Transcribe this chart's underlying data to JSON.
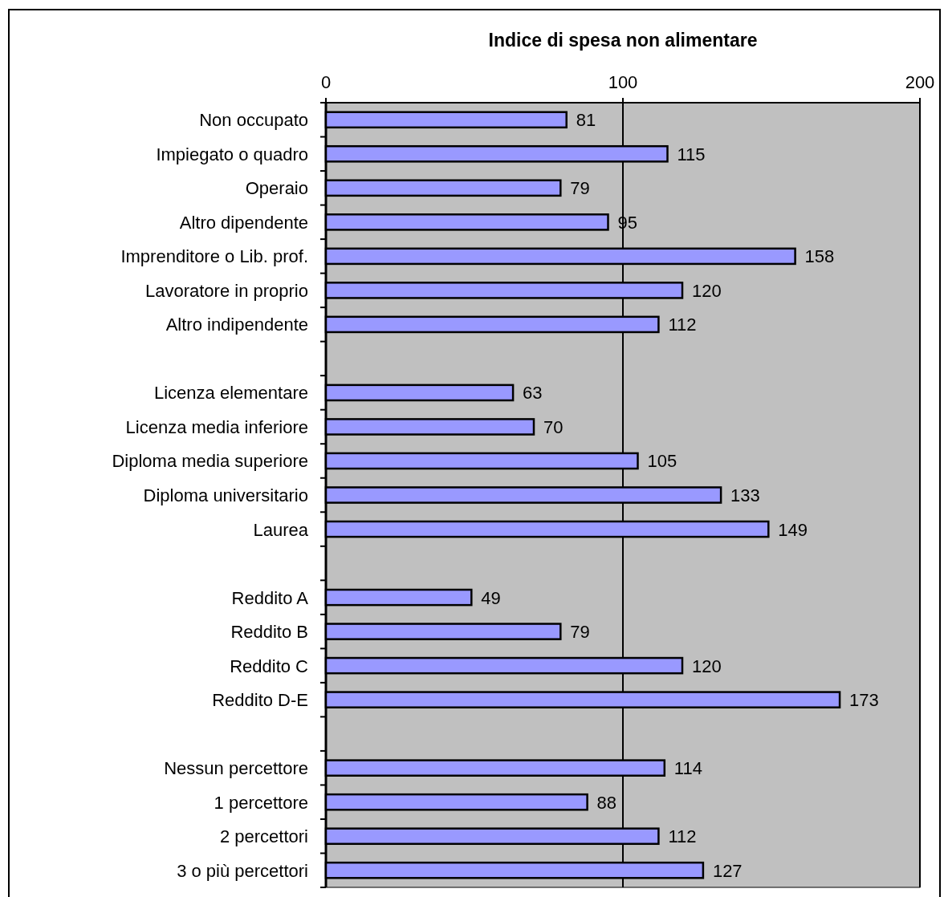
{
  "chart_data": {
    "type": "bar",
    "orientation": "horizontal",
    "title": "Indice di spesa non alimentare",
    "categories": [
      "Non occupato",
      "Impiegato o quadro",
      "Operaio",
      "Altro dipendente",
      "Imprenditore o Lib. prof.",
      "Lavoratore in proprio",
      "Altro indipendente",
      null,
      "Licenza elementare",
      "Licenza media inferiore",
      "Diploma media superiore",
      "Diploma universitario",
      "Laurea",
      null,
      "Reddito A",
      "Reddito B",
      "Reddito C",
      "Reddito D-E",
      null,
      "Nessun percettore",
      "1 percettore",
      "2 percettori",
      "3 o più  percettori"
    ],
    "values": [
      81,
      115,
      79,
      95,
      158,
      120,
      112,
      null,
      63,
      70,
      105,
      133,
      149,
      null,
      49,
      79,
      120,
      173,
      null,
      114,
      88,
      112,
      127
    ],
    "color": "#9999ff",
    "xlim": [
      0,
      200
    ],
    "xticks": [
      0,
      100,
      200
    ],
    "grid": "x",
    "data_labels": true
  }
}
